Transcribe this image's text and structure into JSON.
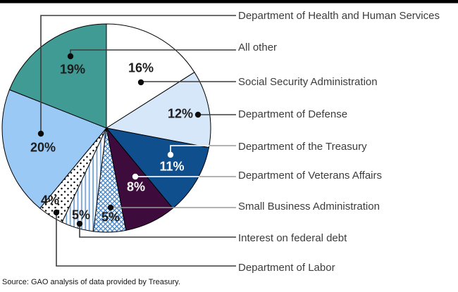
{
  "chart_data": {
    "type": "pie",
    "title": "",
    "source": "Source: GAO analysis of data provided by Treasury.",
    "legend_position": "right-labels-with-leader-lines",
    "colors": {
      "leader_dark": "#3d3d3d",
      "leader_gray": "#9a9a9a",
      "leader_white": "#f2f2f2",
      "outline": "#000000",
      "label_text": "#3c3c3c",
      "pct_text": "#1c1c1c",
      "top_rule": "#000000"
    },
    "slices": [
      {
        "label": "Department of Health and Human Services",
        "value": 20,
        "pct_label": "20%",
        "fill": "#9bc9f6",
        "pattern": null,
        "pct_color": "#1c1c1c"
      },
      {
        "label": "All other",
        "value": 19,
        "pct_label": "19%",
        "fill": "#3f9b94",
        "pattern": null,
        "pct_color": "#1c1c1c"
      },
      {
        "label": "Social Security Administration",
        "value": 16,
        "pct_label": "16%",
        "fill": "#ffffff",
        "pattern": null,
        "pct_color": "#1c1c1c"
      },
      {
        "label": "Department of Defense",
        "value": 12,
        "pct_label": "12%",
        "fill": "#d6e7f9",
        "pattern": null,
        "pct_color": "#1c1c1c"
      },
      {
        "label": "Department of the Treasury",
        "value": 11,
        "pct_label": "11%",
        "fill": "#0f4f8e",
        "pattern": null,
        "pct_color": "#ffffff"
      },
      {
        "label": "Department of Veterans Affairs",
        "value": 8,
        "pct_label": "8%",
        "fill": "#3e0c3c",
        "pattern": null,
        "pct_color": "#ffffff"
      },
      {
        "label": "Small Business Administration",
        "value": 5,
        "pct_label": "5%",
        "fill": "#ffffff",
        "pattern": "crosshatch",
        "pattern_color": "#4585c8",
        "pct_color": "#1c1c1c"
      },
      {
        "label": "Interest on federal debt",
        "value": 5,
        "pct_label": "5%",
        "fill": "#ffffff",
        "pattern": "vertical-stripes",
        "pattern_color": "#74a4d8",
        "pct_color": "#1c1c1c"
      },
      {
        "label": "Department of Labor",
        "value": 4,
        "pct_label": "4%",
        "fill": "#ffffff",
        "pattern": "dots",
        "pattern_color": "#0a0a0a",
        "pct_color": "#1c1c1c"
      }
    ],
    "clockwise_order_from_top": [
      "Social Security Administration",
      "Department of Defense",
      "Department of the Treasury",
      "Department of Veterans Affairs",
      "Small Business Administration",
      "Interest on federal debt",
      "Department of Labor",
      "Department of Health and Human Services",
      "All other"
    ]
  }
}
